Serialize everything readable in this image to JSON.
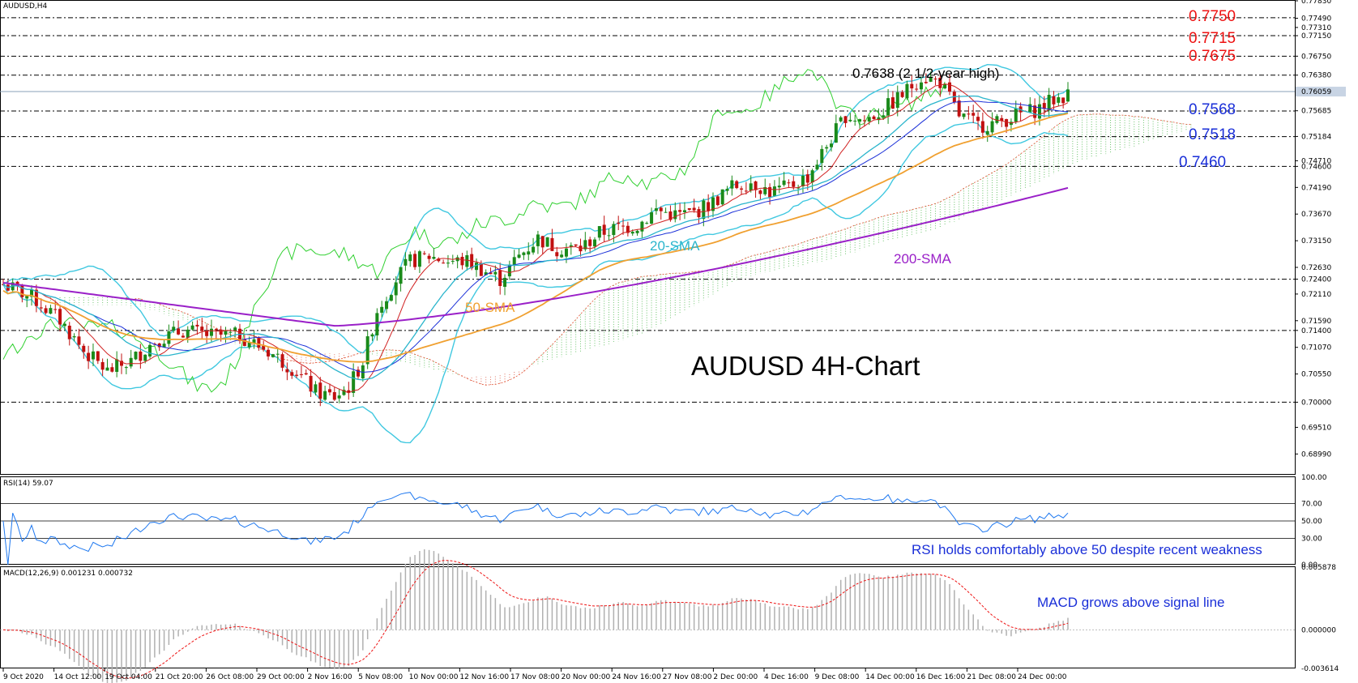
{
  "chart_data": [
    {
      "type": "candlestick",
      "symbol_label": "AUDUSD,H4",
      "title": "AUDUSD 4H-Chart",
      "y_range": [
        0.686,
        0.7783
      ],
      "y_ticks": [
        "0.77830",
        "0.77490",
        "0.77310",
        "0.77150",
        "0.76750",
        "0.76380",
        "0.76059",
        "0.75685",
        "0.75184",
        "0.74710",
        "0.74600",
        "0.74190",
        "0.73670",
        "0.73150",
        "0.72630",
        "0.72400",
        "0.72110",
        "0.71590",
        "0.71400",
        "0.71070",
        "0.70550",
        "0.70000",
        "0.69510",
        "0.68990"
      ],
      "last_price": "0.76059",
      "x_labels": [
        "9 Oct 2020",
        "14 Oct 12:00",
        "19 Oct 04:00",
        "21 Oct 20:00",
        "26 Oct 08:00",
        "29 Oct 00:00",
        "2 Nov 16:00",
        "5 Nov 08:00",
        "10 Nov 00:00",
        "12 Nov 16:00",
        "17 Nov 08:00",
        "20 Nov 00:00",
        "24 Nov 16:00",
        "27 Nov 08:00",
        "2 Dec 00:00",
        "4 Dec 16:00",
        "9 Dec 08:00",
        "14 Dec 00:00",
        "16 Dec 16:00",
        "21 Dec 08:00",
        "24 Dec 00:00"
      ],
      "price_path": [
        [
          0,
          0.723
        ],
        [
          6,
          0.7205
        ],
        [
          12,
          0.716
        ],
        [
          17,
          0.71
        ],
        [
          22,
          0.706
        ],
        [
          27,
          0.708
        ],
        [
          32,
          0.712
        ],
        [
          38,
          0.714
        ],
        [
          44,
          0.713
        ],
        [
          50,
          0.713
        ],
        [
          56,
          0.71
        ],
        [
          62,
          0.706
        ],
        [
          66,
          0.702
        ],
        [
          70,
          0.701
        ],
        [
          73,
          0.703
        ],
        [
          76,
          0.708
        ],
        [
          79,
          0.718
        ],
        [
          83,
          0.724
        ],
        [
          86,
          0.7275
        ],
        [
          90,
          0.7285
        ],
        [
          94,
          0.7275
        ],
        [
          98,
          0.7275
        ],
        [
          102,
          0.7255
        ],
        [
          105,
          0.724
        ],
        [
          109,
          0.7285
        ],
        [
          113,
          0.732
        ],
        [
          117,
          0.73
        ],
        [
          122,
          0.73
        ],
        [
          126,
          0.733
        ],
        [
          130,
          0.734
        ],
        [
          134,
          0.7345
        ],
        [
          138,
          0.7375
        ],
        [
          142,
          0.7365
        ],
        [
          146,
          0.737
        ],
        [
          150,
          0.739
        ],
        [
          154,
          0.742
        ],
        [
          158,
          0.743
        ],
        [
          162,
          0.741
        ],
        [
          166,
          0.742
        ],
        [
          170,
          0.744
        ],
        [
          174,
          0.75
        ],
        [
          178,
          0.756
        ],
        [
          182,
          0.755
        ],
        [
          186,
          0.757
        ],
        [
          190,
          0.76
        ],
        [
          194,
          0.7635
        ],
        [
          198,
          0.7625
        ],
        [
          202,
          0.756
        ],
        [
          206,
          0.754
        ],
        [
          210,
          0.7545
        ],
        [
          214,
          0.756
        ],
        [
          218,
          0.757
        ],
        [
          222,
          0.759
        ],
        [
          225,
          0.76
        ]
      ],
      "indicators": [
        {
          "name": "20-SMA",
          "color": "#2ab5cc"
        },
        {
          "name": "50-SMA",
          "color": "#f0a030"
        },
        {
          "name": "200-SMA",
          "color": "#9a20c8"
        },
        {
          "name": "Bollinger Bands",
          "color": "#40c8e0"
        },
        {
          "name": "Ichimoku",
          "color": "#e05030"
        }
      ],
      "levels": [
        {
          "value": 0.775,
          "label": "0.7750",
          "color": "#ee1111"
        },
        {
          "value": 0.7715,
          "label": "0.7715",
          "color": "#ee1111"
        },
        {
          "value": 0.7675,
          "label": "0.7675",
          "color": "#ee1111"
        },
        {
          "value": 0.7638,
          "label": "",
          "color": "#000000"
        },
        {
          "value": 0.7568,
          "label": "0.7568",
          "color": "#1a2fd8"
        },
        {
          "value": 0.7518,
          "label": "0.7518",
          "color": "#1a2fd8"
        },
        {
          "value": 0.746,
          "label": "0.7460",
          "color": "#1a2fd8"
        },
        {
          "value": 0.724,
          "label": "",
          "color": "#000000"
        },
        {
          "value": 0.714,
          "label": "",
          "color": "#000000"
        },
        {
          "value": 0.7,
          "label": "",
          "color": "#000000"
        }
      ],
      "annotations": {
        "high": "0.7638 (2 1/2-year high)",
        "sma20": "20-SMA",
        "sma50": "50-SMA",
        "sma200": "200-SMA"
      }
    },
    {
      "type": "line",
      "label": "RSI(14) 59.07",
      "y_range": [
        0,
        100
      ],
      "y_ticks": [
        "100.00",
        "70.00",
        "50.00",
        "30.00",
        "0.00"
      ],
      "levels": [
        70,
        50,
        30
      ],
      "last": 59.07,
      "color": "#1e78f0",
      "annotation": "RSI holds comfortably above 50 despite recent weakness"
    },
    {
      "type": "bar",
      "label": "MACD(12,26,9) 0.001231 0.000732",
      "y_range": [
        -0.003614,
        0.005878
      ],
      "y_ticks": [
        "0.005878",
        "0.000000",
        "-0.003614"
      ],
      "histogram_color": "#b0b0b0",
      "signal_color": "#ee1111",
      "annotation": "MACD grows above signal line"
    }
  ]
}
